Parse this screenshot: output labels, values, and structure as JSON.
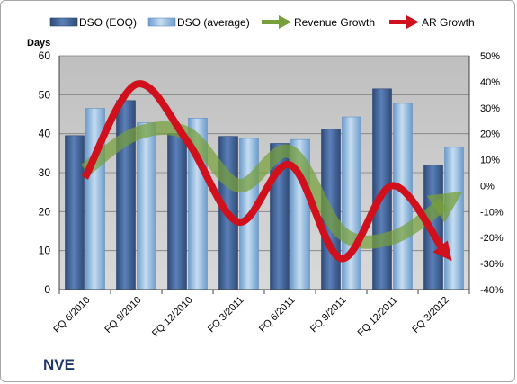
{
  "chart_data": {
    "type": "bar",
    "title": "",
    "company": "NVE",
    "categories": [
      "FQ 6/2010",
      "FQ 9/2010",
      "FQ 12/2010",
      "FQ 3/2011",
      "FQ 6/2011",
      "FQ 9/2011",
      "FQ 12/2011",
      "FQ 3/2012"
    ],
    "y_left": {
      "label": "Days",
      "min": 0,
      "max": 60,
      "ticks": [
        "0",
        "10",
        "20",
        "30",
        "40",
        "50",
        "60"
      ]
    },
    "y_right": {
      "min": -40,
      "max": 50,
      "ticks": [
        "-40%",
        "-30%",
        "-20%",
        "-10%",
        "0%",
        "10%",
        "20%",
        "30%",
        "40%",
        "50%"
      ]
    },
    "grid": true,
    "legend_position": "top",
    "series": [
      {
        "name": "DSO (EOQ)",
        "kind": "bar",
        "axis": "left",
        "color": "#4a6b9c",
        "values": [
          39.5,
          48.5,
          40.0,
          39.3,
          37.5,
          41.2,
          51.5,
          32.0
        ]
      },
      {
        "name": "DSO (average)",
        "kind": "bar",
        "axis": "left",
        "color": "#9dc3e6",
        "values": [
          46.5,
          42.8,
          44.0,
          38.8,
          38.5,
          44.3,
          47.8,
          36.5
        ]
      },
      {
        "name": "Revenue Growth",
        "kind": "line-arrow",
        "axis": "right",
        "color": "#77a03a",
        "values": [
          6,
          20,
          20,
          0,
          13,
          -18,
          -20,
          -7
        ]
      },
      {
        "name": "AR Growth",
        "kind": "line-arrow",
        "axis": "right",
        "color": "#d0101c",
        "values": [
          3,
          39,
          17,
          -14,
          8,
          -28,
          0,
          -25
        ]
      }
    ]
  }
}
